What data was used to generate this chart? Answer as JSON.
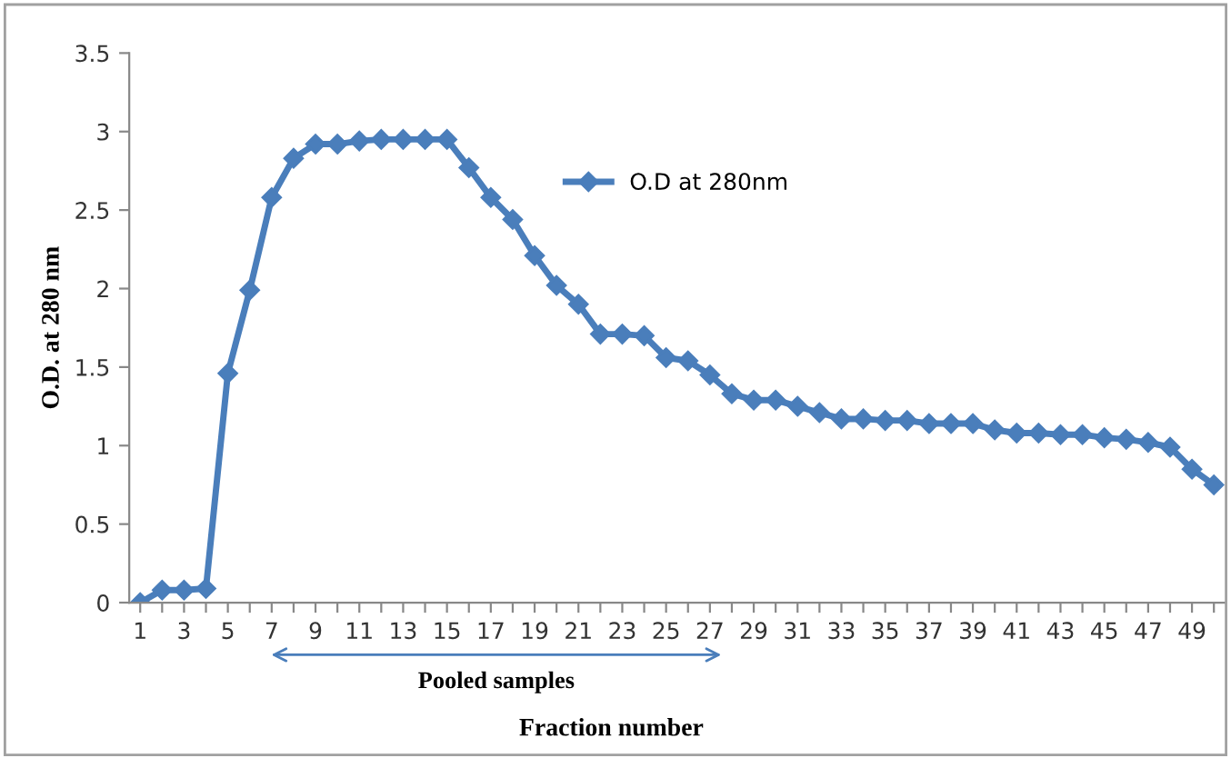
{
  "chart_data": {
    "type": "line",
    "xlabel": "Fraction number",
    "ylabel": "O.D. at 280 nm",
    "categories": [
      "1",
      null,
      "3",
      null,
      "5",
      null,
      "7",
      null,
      "9",
      null,
      "11",
      null,
      "13",
      null,
      "15",
      null,
      "17",
      null,
      "19",
      null,
      "21",
      null,
      "23",
      null,
      "25",
      null,
      "27",
      null,
      "29",
      null,
      "31",
      null,
      "33",
      null,
      "35",
      null,
      "37",
      null,
      "39",
      null,
      "41",
      null,
      "43",
      null,
      "45",
      null,
      "47",
      null,
      "49",
      null
    ],
    "series": [
      {
        "name": "O.D at 280nm",
        "color": "#4a7ebb",
        "values": [
          0,
          0.08,
          0.08,
          0.09,
          1.46,
          1.99,
          2.58,
          2.83,
          2.92,
          2.92,
          2.94,
          2.95,
          2.95,
          2.95,
          2.95,
          2.77,
          2.58,
          2.44,
          2.21,
          2.02,
          1.9,
          1.71,
          1.71,
          1.7,
          1.56,
          1.54,
          1.45,
          1.33,
          1.29,
          1.29,
          1.25,
          1.21,
          1.17,
          1.17,
          1.16,
          1.16,
          1.14,
          1.14,
          1.14,
          1.1,
          1.08,
          1.08,
          1.07,
          1.07,
          1.05,
          1.04,
          1.02,
          0.99,
          0.85,
          0.75
        ]
      }
    ],
    "ylim": [
      0,
      3.5
    ],
    "yticks": [
      0,
      0.5,
      1,
      1.5,
      2,
      2.5,
      3,
      3.5
    ],
    "annotations": [
      "Pooled samples"
    ],
    "marker": "diamond",
    "line_style": "solid",
    "legend": "top",
    "grid": false
  }
}
